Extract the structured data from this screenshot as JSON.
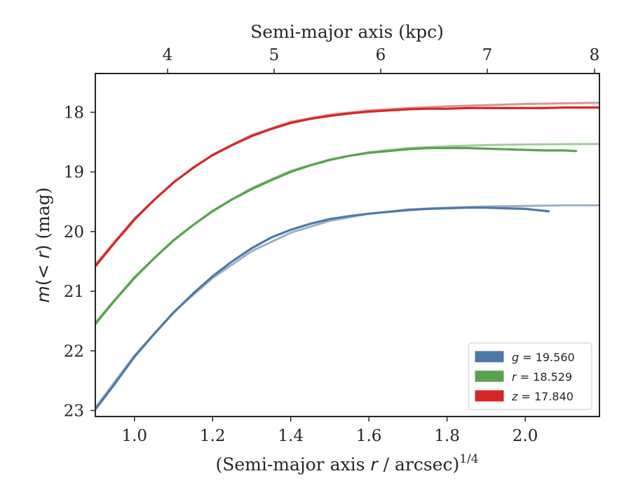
{
  "chart_data": {
    "type": "line",
    "top_axis": {
      "label": "Semi-major axis (kpc)",
      "ticks": [
        4,
        5,
        6,
        7,
        8
      ],
      "tick_labels": [
        "4",
        "5",
        "6",
        "7",
        "8"
      ]
    },
    "xlabel": "(Semi-major axis r / arcsec)^1/4",
    "ylabel": "m(< r) (mag)",
    "xlim": [
      0.9,
      2.19
    ],
    "ylim": [
      23.1,
      17.35
    ],
    "y_inverted": true,
    "x_ticks": [
      1.0,
      1.2,
      1.4,
      1.6,
      1.8,
      2.0
    ],
    "x_tick_labels": [
      "1.0",
      "1.2",
      "1.4",
      "1.6",
      "1.8",
      "2.0"
    ],
    "y_ticks": [
      18,
      19,
      20,
      21,
      22,
      23
    ],
    "y_tick_labels": [
      "18",
      "19",
      "20",
      "21",
      "22",
      "23"
    ],
    "grid": false,
    "legend_position": "lower-right",
    "series": [
      {
        "name": "g = 19.560",
        "band": "g",
        "value": "19.560",
        "color": "#4e79a7",
        "model_color": "#8fa9c4",
        "x": [
          0.9,
          0.95,
          1.0,
          1.05,
          1.1,
          1.15,
          1.2,
          1.25,
          1.3,
          1.35,
          1.4,
          1.45,
          1.5,
          1.55,
          1.6,
          1.65,
          1.7,
          1.75,
          1.8,
          1.85,
          1.9,
          1.95,
          2.0,
          2.03,
          2.06
        ],
        "values": [
          22.98,
          22.55,
          22.1,
          21.72,
          21.36,
          21.04,
          20.75,
          20.5,
          20.28,
          20.1,
          19.97,
          19.87,
          19.79,
          19.74,
          19.7,
          19.67,
          19.64,
          19.62,
          19.61,
          19.6,
          19.6,
          19.61,
          19.62,
          19.64,
          19.66
        ],
        "model_x": [
          0.9,
          1.0,
          1.1,
          1.2,
          1.3,
          1.4,
          1.5,
          1.6,
          1.7,
          1.8,
          1.9,
          2.0,
          2.1,
          2.19
        ],
        "model_values": [
          22.95,
          22.08,
          21.35,
          20.78,
          20.33,
          20.02,
          19.82,
          19.7,
          19.63,
          19.6,
          19.58,
          19.57,
          19.56,
          19.56
        ]
      },
      {
        "name": "r = 18.529",
        "band": "r",
        "value": "18.529",
        "color": "#59a14f",
        "model_color": "#98c591",
        "x": [
          0.9,
          0.95,
          1.0,
          1.05,
          1.1,
          1.15,
          1.2,
          1.25,
          1.3,
          1.35,
          1.4,
          1.45,
          1.5,
          1.55,
          1.6,
          1.65,
          1.7,
          1.75,
          1.8,
          1.85,
          1.9,
          1.95,
          2.0,
          2.05,
          2.1,
          2.13
        ],
        "values": [
          21.55,
          21.15,
          20.78,
          20.45,
          20.15,
          19.89,
          19.66,
          19.46,
          19.29,
          19.14,
          19.0,
          18.89,
          18.8,
          18.73,
          18.68,
          18.65,
          18.62,
          18.6,
          18.6,
          18.6,
          18.61,
          18.62,
          18.63,
          18.64,
          18.64,
          18.65
        ],
        "model_x": [
          0.9,
          1.0,
          1.1,
          1.2,
          1.3,
          1.4,
          1.5,
          1.6,
          1.7,
          1.8,
          1.9,
          2.0,
          2.1,
          2.19
        ],
        "model_values": [
          21.52,
          20.76,
          20.14,
          19.65,
          19.27,
          18.98,
          18.79,
          18.67,
          18.6,
          18.57,
          18.55,
          18.54,
          18.535,
          18.53
        ]
      },
      {
        "name": "z = 17.840",
        "band": "z",
        "value": "17.840",
        "color": "#d62728",
        "model_color": "#e08484",
        "x": [
          0.9,
          0.95,
          1.0,
          1.05,
          1.1,
          1.15,
          1.2,
          1.25,
          1.3,
          1.35,
          1.4,
          1.45,
          1.5,
          1.55,
          1.6,
          1.65,
          1.7,
          1.75,
          1.8,
          1.85,
          1.9,
          1.95,
          2.0,
          2.05,
          2.1,
          2.15,
          2.19
        ],
        "values": [
          20.58,
          20.18,
          19.8,
          19.47,
          19.18,
          18.93,
          18.72,
          18.55,
          18.4,
          18.28,
          18.18,
          18.11,
          18.06,
          18.02,
          17.99,
          17.97,
          17.95,
          17.94,
          17.94,
          17.93,
          17.93,
          17.93,
          17.93,
          17.93,
          17.92,
          17.92,
          17.92
        ],
        "model_x": [
          0.9,
          1.0,
          1.1,
          1.2,
          1.3,
          1.4,
          1.5,
          1.6,
          1.7,
          1.8,
          1.9,
          2.0,
          2.1,
          2.19
        ],
        "model_values": [
          20.55,
          19.78,
          19.17,
          18.71,
          18.38,
          18.16,
          18.04,
          17.97,
          17.93,
          17.9,
          17.88,
          17.86,
          17.85,
          17.84
        ]
      }
    ]
  }
}
